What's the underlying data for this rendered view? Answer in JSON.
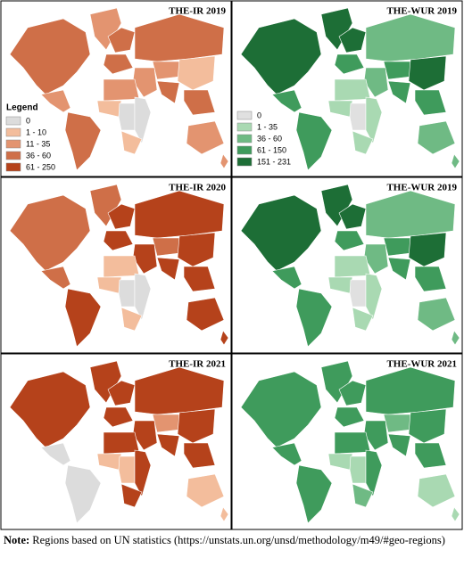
{
  "panels": [
    {
      "title": "THE-IR 2019",
      "legend": {
        "title": "Legend",
        "items": [
          {
            "label": "0",
            "color": "#dcdcdc"
          },
          {
            "label": "1 - 10",
            "color": "#f3bd9c"
          },
          {
            "label": "11 - 35",
            "color": "#e39470"
          },
          {
            "label": "36 - 60",
            "color": "#cf6f48"
          },
          {
            "label": "61 - 250",
            "color": "#b5421b"
          }
        ]
      }
    },
    {
      "title": "THE-WUR 2019",
      "legend": {
        "items": [
          {
            "label": "0",
            "color": "#e0e0e0"
          },
          {
            "label": "1 - 35",
            "color": "#a9d9b2"
          },
          {
            "label": "36 - 60",
            "color": "#6fba84"
          },
          {
            "label": "61 - 150",
            "color": "#3f9b5c"
          },
          {
            "label": "151 - 231",
            "color": "#1d6e36"
          }
        ]
      }
    },
    {
      "title": "THE-IR 2020"
    },
    {
      "title": "THE-WUR 2019"
    },
    {
      "title": "THE-IR 2021"
    },
    {
      "title": "THE-WUR 2021"
    }
  ],
  "note": {
    "label": "Note:",
    "text": "Regions based on UN statistics (https://unstats.un.org/unsd/methodology/m49/#geo-regions)"
  }
}
